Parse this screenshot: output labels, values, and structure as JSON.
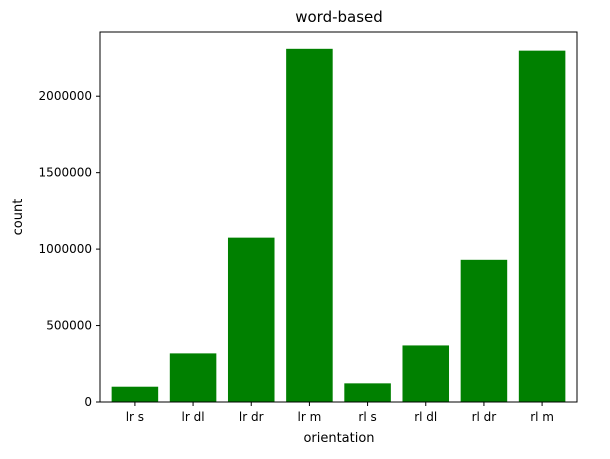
{
  "chart_data": {
    "type": "bar",
    "title": "word-based",
    "xlabel": "orientation",
    "ylabel": "count",
    "categories": [
      "lr s",
      "lr dl",
      "lr dr",
      "lr m",
      "rl s",
      "rl dl",
      "rl dr",
      "rl m"
    ],
    "values": [
      100000,
      318000,
      1075000,
      2310000,
      122000,
      370000,
      930000,
      2298000
    ],
    "ylim": [
      0,
      2420000
    ],
    "yticks": [
      0,
      500000,
      1000000,
      1500000,
      2000000
    ],
    "ytick_labels": [
      "0",
      "500000",
      "1000000",
      "1500000",
      "2000000"
    ],
    "bar_color": "#008000",
    "grid": false
  }
}
